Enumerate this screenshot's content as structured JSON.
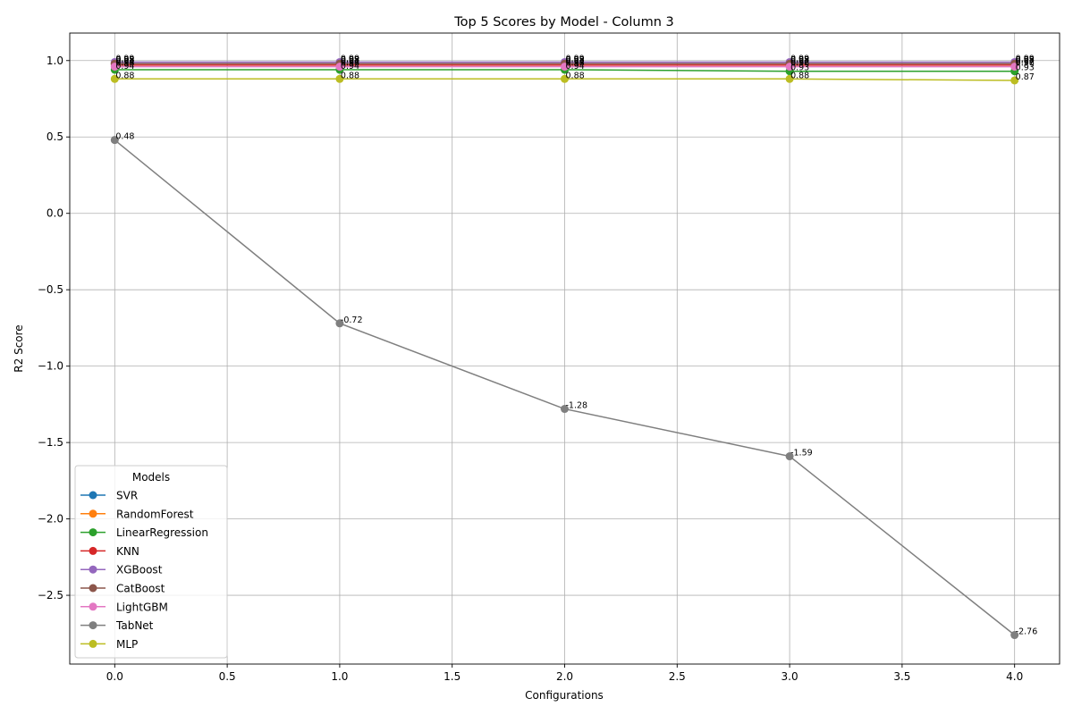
{
  "chart_data": {
    "type": "line",
    "title": "Top 5 Scores by Model - Column 3",
    "xlabel": "Configurations",
    "ylabel": "R2 Score",
    "x": [
      0,
      1,
      2,
      3,
      4
    ],
    "xlim": [
      -0.2,
      4.2
    ],
    "ylim": [
      -2.95,
      1.18
    ],
    "xticks": [
      0.0,
      0.5,
      1.0,
      1.5,
      2.0,
      2.5,
      3.0,
      3.5,
      4.0
    ],
    "xtick_labels": [
      "0.0",
      "0.5",
      "1.0",
      "1.5",
      "2.0",
      "2.5",
      "3.0",
      "3.5",
      "4.0"
    ],
    "yticks": [
      -2.5,
      -2.0,
      -1.5,
      -1.0,
      -0.5,
      0.0,
      0.5,
      1.0
    ],
    "ytick_labels": [
      "−2.5",
      "−2.0",
      "−1.5",
      "−1.0",
      "−0.5",
      "0.0",
      "0.5",
      "1.0"
    ],
    "grid": true,
    "legend": {
      "title": "Models",
      "placement": "lower-left"
    },
    "series": [
      {
        "name": "SVR",
        "color": "#1f77b4",
        "values": [
          0.98,
          0.98,
          0.98,
          0.98,
          0.98
        ],
        "labels": [
          "0.98",
          "0.98",
          "0.98",
          "0.98",
          "0.98"
        ]
      },
      {
        "name": "RandomForest",
        "color": "#ff7f0e",
        "values": [
          0.98,
          0.98,
          0.98,
          0.98,
          0.98
        ],
        "labels": [
          "0.98",
          "0.98",
          "0.98",
          "0.98",
          "0.98"
        ]
      },
      {
        "name": "LinearRegression",
        "color": "#2ca02c",
        "values": [
          0.94,
          0.94,
          0.94,
          0.93,
          0.93
        ],
        "labels": [
          "0.94",
          "0.94",
          "0.94",
          "0.93",
          "0.93"
        ]
      },
      {
        "name": "KNN",
        "color": "#d62728",
        "values": [
          0.97,
          0.97,
          0.97,
          0.97,
          0.97
        ],
        "labels": [
          "0.97",
          "0.97",
          "0.97",
          "0.97",
          "0.97"
        ]
      },
      {
        "name": "XGBoost",
        "color": "#9467bd",
        "values": [
          0.99,
          0.99,
          0.99,
          0.99,
          0.99
        ],
        "labels": [
          "0.99",
          "0.99",
          "0.99",
          "0.99",
          "0.99"
        ]
      },
      {
        "name": "CatBoost",
        "color": "#8c564b",
        "values": [
          0.98,
          0.98,
          0.98,
          0.98,
          0.98
        ],
        "labels": [
          "0.98",
          "0.98",
          "0.98",
          "0.98",
          "0.98"
        ]
      },
      {
        "name": "LightGBM",
        "color": "#e377c2",
        "values": [
          0.96,
          0.96,
          0.96,
          0.96,
          0.96
        ],
        "labels": [
          "0.96",
          "0.96",
          "0.96",
          "0.96",
          "0.96"
        ]
      },
      {
        "name": "TabNet",
        "color": "#7f7f7f",
        "values": [
          0.48,
          -0.72,
          -1.28,
          -1.59,
          -2.76
        ],
        "labels": [
          "0.48",
          "-0.72",
          "-1.28",
          "-1.59",
          "-2.76"
        ]
      },
      {
        "name": "MLP",
        "color": "#bcbd22",
        "values": [
          0.88,
          0.88,
          0.88,
          0.88,
          0.87
        ],
        "labels": [
          "0.88",
          "0.88",
          "0.88",
          "0.88",
          "0.87"
        ]
      }
    ]
  }
}
